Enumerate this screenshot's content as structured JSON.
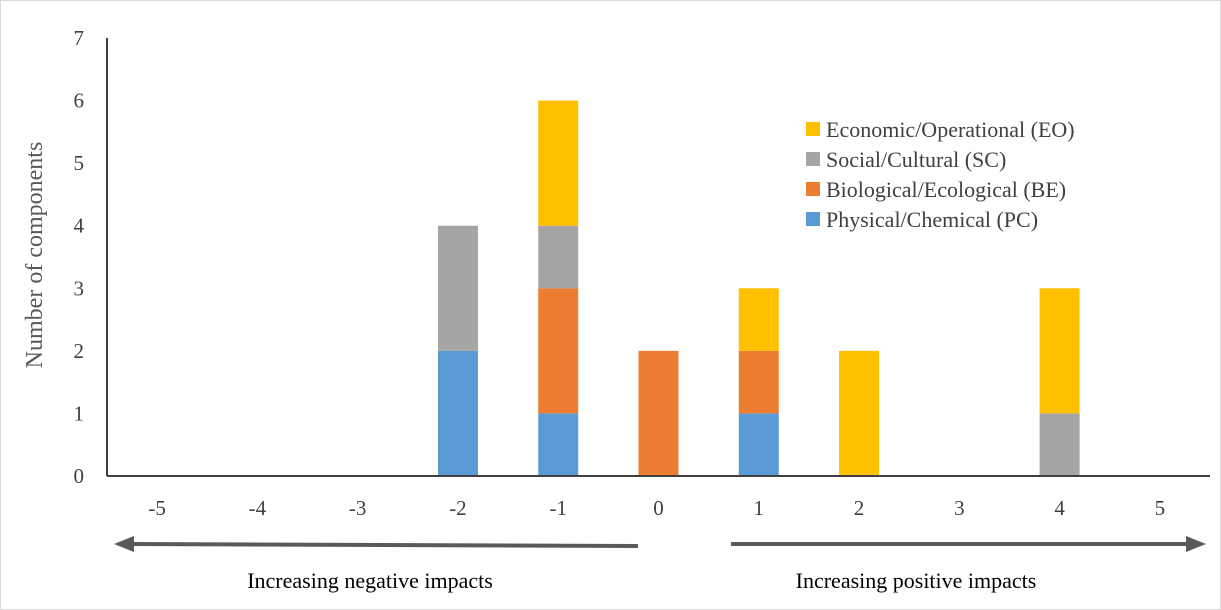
{
  "chart_data": {
    "type": "bar",
    "stacked": true,
    "categories": [
      "-5",
      "-4",
      "-3",
      "-2",
      "-1",
      "0",
      "1",
      "2",
      "3",
      "4",
      "5"
    ],
    "series": [
      {
        "name": "Physical/Chemical (PC)",
        "color": "#5b9bd5",
        "values": [
          0,
          0,
          0,
          2,
          1,
          0,
          1,
          0,
          0,
          0,
          0
        ]
      },
      {
        "name": "Biological/Ecological (BE)",
        "color": "#ed7d31",
        "values": [
          0,
          0,
          0,
          0,
          2,
          2,
          1,
          0,
          0,
          0,
          0
        ]
      },
      {
        "name": "Social/Cultural (SC)",
        "color": "#a5a5a5",
        "values": [
          0,
          0,
          0,
          2,
          1,
          0,
          0,
          0,
          0,
          1,
          0
        ]
      },
      {
        "name": "Economic/Operational (EO)",
        "color": "#ffc000",
        "values": [
          0,
          0,
          0,
          0,
          2,
          0,
          1,
          2,
          0,
          2,
          0
        ]
      }
    ],
    "title": "",
    "xlabel": "",
    "ylabel": "Number of components",
    "ylim": [
      0,
      7
    ],
    "yticks": [
      "0",
      "1",
      "2",
      "3",
      "4",
      "5",
      "6",
      "7"
    ],
    "grid": false,
    "legend_position": "top-right",
    "legend_order": [
      "Economic/Operational (EO)",
      "Social/Cultural (SC)",
      "Biological/Ecological (BE)",
      "Physical/Chemical (PC)"
    ],
    "annotations": {
      "left_arrow_label": "Increasing negative impacts",
      "right_arrow_label": "Increasing positive impacts"
    }
  }
}
